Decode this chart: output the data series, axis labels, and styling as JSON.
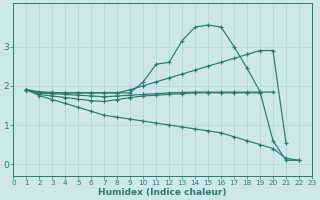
{
  "xlabel": "Humidex (Indice chaleur)",
  "background_color": "#cce8e8",
  "grid_color": "#b0d4d4",
  "line_color": "#2a7a70",
  "xlim": [
    0,
    23
  ],
  "ylim": [
    -0.3,
    4.1
  ],
  "yticks": [
    0,
    1,
    2,
    3
  ],
  "xticks": [
    0,
    1,
    2,
    3,
    4,
    5,
    6,
    7,
    8,
    9,
    10,
    11,
    12,
    13,
    14,
    15,
    16,
    17,
    18,
    19,
    20,
    21,
    22,
    23
  ],
  "series": [
    {
      "x": [
        1,
        2,
        3,
        4,
        5,
        6,
        7,
        8,
        9,
        10,
        11,
        12,
        13,
        14,
        15,
        16,
        17,
        18,
        19,
        20,
        21,
        22
      ],
      "y": [
        1.9,
        1.85,
        1.83,
        1.82,
        1.82,
        1.82,
        1.82,
        1.82,
        1.82,
        2.1,
        2.55,
        2.6,
        3.15,
        3.5,
        3.55,
        3.5,
        3.0,
        2.45,
        1.85,
        0.6,
        0.1,
        0.1
      ]
    },
    {
      "x": [
        1,
        2,
        3,
        4,
        5,
        6,
        7,
        8,
        9,
        10,
        11,
        12,
        13,
        14,
        15,
        16,
        17,
        18,
        19,
        20,
        21
      ],
      "y": [
        1.9,
        1.82,
        1.82,
        1.82,
        1.82,
        1.82,
        1.82,
        1.82,
        1.9,
        2.0,
        2.1,
        2.2,
        2.3,
        2.4,
        2.5,
        2.6,
        2.7,
        2.8,
        2.9,
        2.9,
        0.55
      ]
    },
    {
      "x": [
        1,
        2,
        3,
        4,
        5,
        6,
        7,
        8,
        9,
        10,
        11,
        12,
        13,
        14,
        15,
        16,
        17,
        18,
        19,
        20
      ],
      "y": [
        1.9,
        1.82,
        1.8,
        1.78,
        1.76,
        1.74,
        1.72,
        1.74,
        1.76,
        1.78,
        1.8,
        1.82,
        1.83,
        1.84,
        1.84,
        1.84,
        1.84,
        1.84,
        1.84,
        1.84
      ]
    },
    {
      "x": [
        1,
        2,
        3,
        4,
        5,
        6,
        7,
        8,
        9,
        10,
        11,
        12,
        13,
        14,
        15,
        16,
        17,
        18,
        19
      ],
      "y": [
        1.9,
        1.78,
        1.74,
        1.7,
        1.66,
        1.62,
        1.6,
        1.65,
        1.7,
        1.74,
        1.76,
        1.78,
        1.8,
        1.82,
        1.82,
        1.82,
        1.82,
        1.82,
        1.82
      ]
    },
    {
      "x": [
        1,
        2,
        3,
        4,
        5,
        6,
        7,
        8,
        9,
        10,
        11,
        12,
        13,
        14,
        15,
        16,
        17,
        18,
        19,
        20,
        21,
        22
      ],
      "y": [
        1.9,
        1.75,
        1.65,
        1.55,
        1.45,
        1.35,
        1.25,
        1.2,
        1.15,
        1.1,
        1.05,
        1.0,
        0.95,
        0.9,
        0.85,
        0.8,
        0.7,
        0.6,
        0.5,
        0.4,
        0.15,
        0.1
      ]
    }
  ]
}
